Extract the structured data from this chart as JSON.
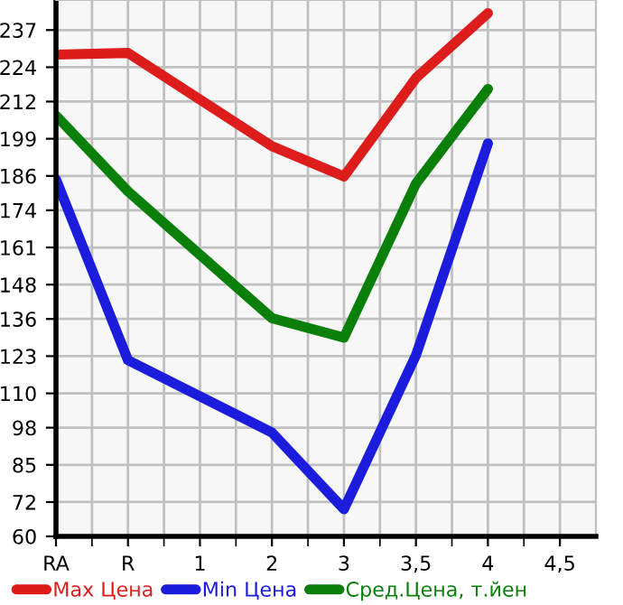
{
  "chart_data": {
    "type": "line",
    "categories": [
      "RA",
      "R",
      "1",
      "2",
      "3",
      "3,5",
      "4",
      "4,5"
    ],
    "series": [
      {
        "name": "Max Цена",
        "color": "#dd1c1c",
        "values": [
          228.4,
          229.0,
          null,
          196.4,
          185.8,
          220.2,
          242.9,
          null
        ]
      },
      {
        "name": "Min Цена",
        "color": "#1c1cdd",
        "values": [
          184.8,
          121.6,
          null,
          96.3,
          69.5,
          123.3,
          197.4,
          null
        ]
      },
      {
        "name": "Сред.Цена, т.йен",
        "color": "#0a7f0a",
        "values": [
          207.1,
          180.6,
          null,
          136.3,
          129.5,
          183.3,
          216.4,
          null
        ]
      }
    ],
    "ylim": [
      60,
      247.5
    ],
    "yticks": [
      60,
      72,
      85,
      98,
      110,
      123,
      136,
      148,
      161,
      174,
      186,
      199,
      212,
      224,
      237
    ],
    "grid": true,
    "legend": "bottom",
    "marker": "none",
    "line_style": "solid"
  }
}
